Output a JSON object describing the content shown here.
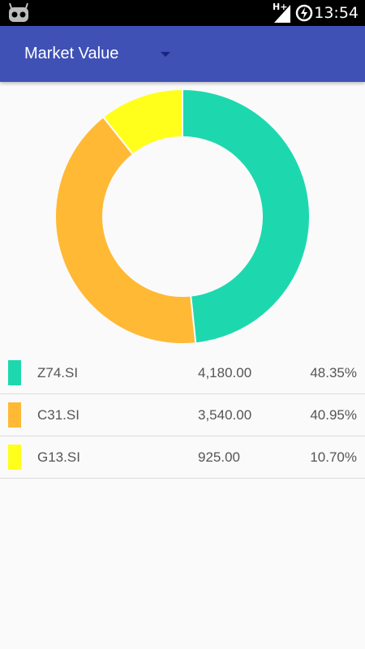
{
  "status_bar": {
    "time": "13:54",
    "network": "H+"
  },
  "app_bar": {
    "selected_view": "Market Value"
  },
  "chart_data": {
    "type": "pie",
    "style": "donut",
    "categories": [
      "Z74.SI",
      "C31.SI",
      "G13.SI"
    ],
    "values": [
      4180.0,
      3540.0,
      925.0
    ],
    "percentages": [
      48.35,
      40.95,
      10.7
    ],
    "colors": [
      "#1dd8ae",
      "#ffb935",
      "#ffff1b"
    ]
  },
  "holdings": [
    {
      "ticker": "Z74.SI",
      "value": "4,180.00",
      "percent": "48.35%",
      "color": "#1dd8ae"
    },
    {
      "ticker": "C31.SI",
      "value": "3,540.00",
      "percent": "40.95%",
      "color": "#ffb935"
    },
    {
      "ticker": "G13.SI",
      "value": "925.00",
      "percent": "10.70%",
      "color": "#ffff1b"
    }
  ]
}
